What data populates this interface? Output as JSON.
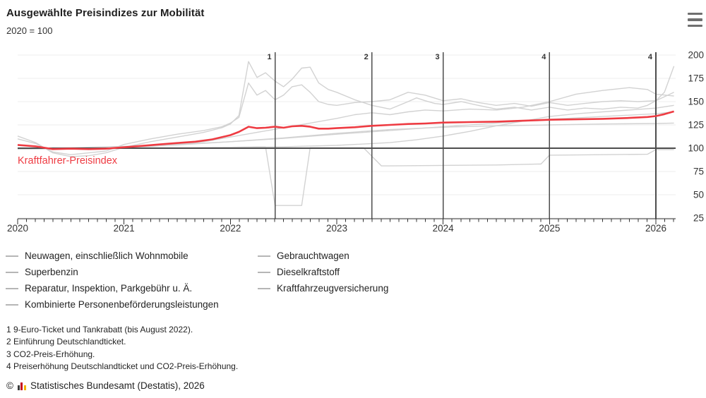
{
  "header": {
    "title": "Ausgewählte Preisindizes zur Mobilität",
    "subtitle": "2020 = 100",
    "menu_icon": "hamburger-icon"
  },
  "chart_data": {
    "type": "line",
    "title": "Ausgewählte Preisindizes zur Mobilität",
    "index_note": "2020 = 100",
    "highlight_label": "Kraftfahrer-Preisindex",
    "x_axis": {
      "range": [
        2020,
        2026.25
      ],
      "tick_years": [
        "2020",
        "2021",
        "2022",
        "2023",
        "2024",
        "2025",
        "2026"
      ],
      "minor_ticks_per_year": 12,
      "grid": false
    },
    "y_axis": {
      "ticks": [
        25,
        50,
        75,
        100,
        125,
        150,
        175,
        200
      ],
      "baseline": 100,
      "side": "right",
      "grid": true
    },
    "legend_position": "bottom",
    "colors": {
      "highlight": "#ee3b42",
      "context": "#d2d2d2",
      "grid": "#ececec",
      "baseline": "#4d4d4d",
      "event_line": "#4d4d4d",
      "axis": "#333333",
      "tick_text": "#333333"
    },
    "events": [
      {
        "marker": "1",
        "year": 2022.42
      },
      {
        "marker": "2",
        "year": 2023.33
      },
      {
        "marker": "3",
        "year": 2024.0
      },
      {
        "marker": "4",
        "year": 2025.0
      },
      {
        "marker": "4",
        "year": 2026.0
      }
    ],
    "series": [
      {
        "name": "Kombinierte Personenbeförderungsleistungen",
        "role": "context",
        "points": [
          [
            2020,
            99
          ],
          [
            2020.5,
            99.5
          ],
          [
            2021,
            100
          ],
          [
            2021.5,
            100.5
          ],
          [
            2022,
            101
          ],
          [
            2022.25,
            101.5
          ],
          [
            2022.33,
            101.5
          ],
          [
            2022.42,
            38.5
          ],
          [
            2022.67,
            38.5
          ],
          [
            2022.75,
            100.5
          ],
          [
            2023,
            100.5
          ],
          [
            2023.25,
            100.5
          ],
          [
            2023.42,
            81
          ],
          [
            2023.5,
            81
          ],
          [
            2024,
            81.5
          ],
          [
            2024.5,
            82
          ],
          [
            2024.92,
            83
          ],
          [
            2025,
            92.5
          ],
          [
            2025.5,
            93
          ],
          [
            2025.92,
            93.5
          ],
          [
            2026,
            98.5
          ],
          [
            2026.17,
            98.5
          ]
        ]
      },
      {
        "name": "Neuwagen, einschließlich Wohnmobile",
        "role": "context",
        "points": [
          [
            2020,
            99.5
          ],
          [
            2020.5,
            100
          ],
          [
            2021,
            101.5
          ],
          [
            2021.5,
            103.5
          ],
          [
            2022,
            107
          ],
          [
            2022.5,
            111
          ],
          [
            2023,
            116
          ],
          [
            2023.5,
            120
          ],
          [
            2024,
            122.5
          ],
          [
            2024.5,
            124
          ],
          [
            2025,
            125
          ],
          [
            2025.5,
            126
          ],
          [
            2026,
            126.5
          ],
          [
            2026.17,
            127
          ]
        ]
      },
      {
        "name": "Reparatur, Inspektion, Parkgebühr u. Ä.",
        "role": "context",
        "points": [
          [
            2020,
            99
          ],
          [
            2020.5,
            100.5
          ],
          [
            2021,
            102
          ],
          [
            2021.5,
            104
          ],
          [
            2022,
            107
          ],
          [
            2022.5,
            110.5
          ],
          [
            2023,
            115
          ],
          [
            2023.5,
            119
          ],
          [
            2024,
            123
          ],
          [
            2024.5,
            127
          ],
          [
            2025,
            131
          ],
          [
            2025.5,
            134
          ],
          [
            2026,
            137
          ],
          [
            2026.17,
            139
          ]
        ]
      },
      {
        "name": "Kraftfahrzeugversicherung",
        "role": "context",
        "points": [
          [
            2020,
            100
          ],
          [
            2020.5,
            100
          ],
          [
            2021,
            100.5
          ],
          [
            2021.5,
            100.5
          ],
          [
            2022,
            101
          ],
          [
            2022.5,
            101.5
          ],
          [
            2023,
            103
          ],
          [
            2023.5,
            106
          ],
          [
            2023.75,
            109
          ],
          [
            2024,
            113
          ],
          [
            2024.25,
            118
          ],
          [
            2024.5,
            124
          ],
          [
            2024.75,
            129
          ],
          [
            2025,
            134
          ],
          [
            2025.25,
            137
          ],
          [
            2025.5,
            139
          ],
          [
            2025.75,
            141
          ],
          [
            2026,
            143
          ],
          [
            2026.17,
            146
          ]
        ]
      },
      {
        "name": "Gebrauchtwagen",
        "role": "context",
        "points": [
          [
            2020,
            99
          ],
          [
            2020.5,
            100
          ],
          [
            2021,
            101
          ],
          [
            2021.25,
            102
          ],
          [
            2021.5,
            104
          ],
          [
            2021.75,
            107
          ],
          [
            2022,
            112
          ],
          [
            2022.25,
            117
          ],
          [
            2022.5,
            122
          ],
          [
            2022.75,
            127
          ],
          [
            2023,
            132
          ],
          [
            2023.17,
            136
          ],
          [
            2023.33,
            138
          ],
          [
            2023.5,
            136
          ],
          [
            2023.67,
            139
          ],
          [
            2023.83,
            141
          ],
          [
            2024,
            140
          ],
          [
            2024.25,
            142
          ],
          [
            2024.5,
            141
          ],
          [
            2024.75,
            144
          ],
          [
            2025,
            150
          ],
          [
            2025.25,
            158
          ],
          [
            2025.5,
            162
          ],
          [
            2025.75,
            165
          ],
          [
            2025.92,
            163
          ],
          [
            2026,
            158
          ],
          [
            2026.17,
            156
          ]
        ]
      },
      {
        "name": "Superbenzin",
        "role": "context",
        "points": [
          [
            2020,
            110
          ],
          [
            2020.17,
            105
          ],
          [
            2020.33,
            96
          ],
          [
            2020.5,
            93
          ],
          [
            2020.67,
            95
          ],
          [
            2020.83,
            97
          ],
          [
            2021,
            104
          ],
          [
            2021.25,
            110
          ],
          [
            2021.5,
            115
          ],
          [
            2021.75,
            119
          ],
          [
            2021.92,
            123
          ],
          [
            2022,
            127
          ],
          [
            2022.08,
            133
          ],
          [
            2022.17,
            170
          ],
          [
            2022.25,
            157
          ],
          [
            2022.33,
            162
          ],
          [
            2022.42,
            152
          ],
          [
            2022.5,
            157
          ],
          [
            2022.58,
            166
          ],
          [
            2022.67,
            168
          ],
          [
            2022.75,
            160
          ],
          [
            2022.83,
            150
          ],
          [
            2022.92,
            147
          ],
          [
            2023,
            146
          ],
          [
            2023.17,
            149
          ],
          [
            2023.33,
            150
          ],
          [
            2023.5,
            152
          ],
          [
            2023.67,
            160
          ],
          [
            2023.83,
            157
          ],
          [
            2024,
            151
          ],
          [
            2024.17,
            153
          ],
          [
            2024.33,
            149
          ],
          [
            2024.5,
            146
          ],
          [
            2024.67,
            148
          ],
          [
            2024.83,
            145
          ],
          [
            2025,
            149
          ],
          [
            2025.17,
            146
          ],
          [
            2025.33,
            148
          ],
          [
            2025.5,
            150
          ],
          [
            2025.67,
            151
          ],
          [
            2025.83,
            150
          ],
          [
            2026,
            151
          ],
          [
            2026.17,
            160
          ]
        ]
      },
      {
        "name": "Dieselkraftstoff",
        "role": "context",
        "points": [
          [
            2020,
            113
          ],
          [
            2020.17,
            106
          ],
          [
            2020.33,
            95
          ],
          [
            2020.5,
            91
          ],
          [
            2020.67,
            92
          ],
          [
            2020.83,
            95
          ],
          [
            2021,
            101
          ],
          [
            2021.25,
            107
          ],
          [
            2021.5,
            112
          ],
          [
            2021.75,
            117
          ],
          [
            2021.92,
            122
          ],
          [
            2022,
            126
          ],
          [
            2022.08,
            135
          ],
          [
            2022.17,
            193
          ],
          [
            2022.25,
            176
          ],
          [
            2022.33,
            181
          ],
          [
            2022.42,
            172
          ],
          [
            2022.5,
            166
          ],
          [
            2022.58,
            174
          ],
          [
            2022.67,
            186
          ],
          [
            2022.75,
            187
          ],
          [
            2022.83,
            170
          ],
          [
            2022.92,
            163
          ],
          [
            2023,
            160
          ],
          [
            2023.17,
            152
          ],
          [
            2023.33,
            146
          ],
          [
            2023.5,
            142
          ],
          [
            2023.67,
            150
          ],
          [
            2023.75,
            154
          ],
          [
            2023.83,
            151
          ],
          [
            2023.92,
            148
          ],
          [
            2024,
            147
          ],
          [
            2024.17,
            150
          ],
          [
            2024.33,
            146
          ],
          [
            2024.5,
            142
          ],
          [
            2024.67,
            144
          ],
          [
            2024.83,
            141
          ],
          [
            2025,
            144
          ],
          [
            2025.17,
            141
          ],
          [
            2025.33,
            143
          ],
          [
            2025.5,
            142
          ],
          [
            2025.67,
            144
          ],
          [
            2025.83,
            143
          ],
          [
            2025.92,
            146
          ],
          [
            2026,
            151
          ],
          [
            2026.08,
            160
          ],
          [
            2026.17,
            188
          ]
        ]
      },
      {
        "name": "Kraftfahrer-Preisindex",
        "role": "highlight",
        "points": [
          [
            2020,
            103.5
          ],
          [
            2020.17,
            102
          ],
          [
            2020.33,
            99
          ],
          [
            2020.5,
            99.5
          ],
          [
            2020.67,
            99
          ],
          [
            2020.83,
            99.5
          ],
          [
            2021,
            101
          ],
          [
            2021.17,
            102.5
          ],
          [
            2021.33,
            104
          ],
          [
            2021.5,
            105.5
          ],
          [
            2021.67,
            107
          ],
          [
            2021.83,
            109.5
          ],
          [
            2022,
            114
          ],
          [
            2022.08,
            117.5
          ],
          [
            2022.17,
            123
          ],
          [
            2022.25,
            121.5
          ],
          [
            2022.33,
            122
          ],
          [
            2022.42,
            123
          ],
          [
            2022.5,
            122
          ],
          [
            2022.58,
            123.5
          ],
          [
            2022.67,
            124
          ],
          [
            2022.75,
            123
          ],
          [
            2022.83,
            121
          ],
          [
            2022.92,
            121
          ],
          [
            2023,
            121.5
          ],
          [
            2023.17,
            122.5
          ],
          [
            2023.33,
            124
          ],
          [
            2023.5,
            125
          ],
          [
            2023.67,
            126
          ],
          [
            2023.83,
            126.5
          ],
          [
            2024,
            127.5
          ],
          [
            2024.25,
            128
          ],
          [
            2024.5,
            128.5
          ],
          [
            2024.75,
            129.5
          ],
          [
            2025,
            130.5
          ],
          [
            2025.25,
            131
          ],
          [
            2025.5,
            131.5
          ],
          [
            2025.75,
            132.5
          ],
          [
            2025.92,
            133.5
          ],
          [
            2026,
            134.5
          ],
          [
            2026.08,
            136.5
          ],
          [
            2026.17,
            139.5
          ]
        ]
      }
    ]
  },
  "legend": {
    "columns": [
      [
        "Neuwagen, einschließlich Wohnmobile",
        "Superbenzin",
        "Reparatur, Inspektion, Parkgebühr u. Ä.",
        "Kombinierte Personenbeförderungsleistungen"
      ],
      [
        "Gebrauchtwagen",
        "Dieselkraftstoff",
        "Kraftfahrzeugversicherung"
      ]
    ]
  },
  "footnotes": [
    "1 9-Euro-Ticket und Tankrabatt (bis August 2022).",
    "2 Einführung Deutschlandticket.",
    "3 CO2-Preis-Erhöhung.",
    "4 Preiserhöhung Deutschlandticket und CO2-Preis-Erhöhung."
  ],
  "source": {
    "copyright": "©",
    "logo_icon": "destatis-logo-icon",
    "label": "Statistisches Bundesamt (Destatis), 2026"
  }
}
